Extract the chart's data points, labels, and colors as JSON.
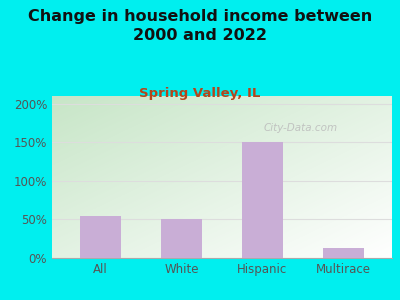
{
  "title": "Change in household income between\n2000 and 2022",
  "subtitle": "Spring Valley, IL",
  "categories": [
    "All",
    "White",
    "Hispanic",
    "Multirace"
  ],
  "values": [
    55,
    50,
    150,
    13
  ],
  "bar_color": "#c9aed6",
  "title_fontsize": 11.5,
  "subtitle_fontsize": 9.5,
  "subtitle_color": "#b5451b",
  "background_outer": "#00efef",
  "plot_bg_topleft": "#c8e6c9",
  "plot_bg_bottomright": "#f0fff0",
  "yticks": [
    0,
    50,
    100,
    150,
    200
  ],
  "ytick_labels": [
    "0%",
    "50%",
    "100%",
    "150%",
    "200%"
  ],
  "ylim": [
    0,
    210
  ],
  "watermark": "City-Data.com",
  "watermark_color": "#bbbbbb",
  "tick_label_color": "#555555",
  "grid_color": "#dddddd"
}
